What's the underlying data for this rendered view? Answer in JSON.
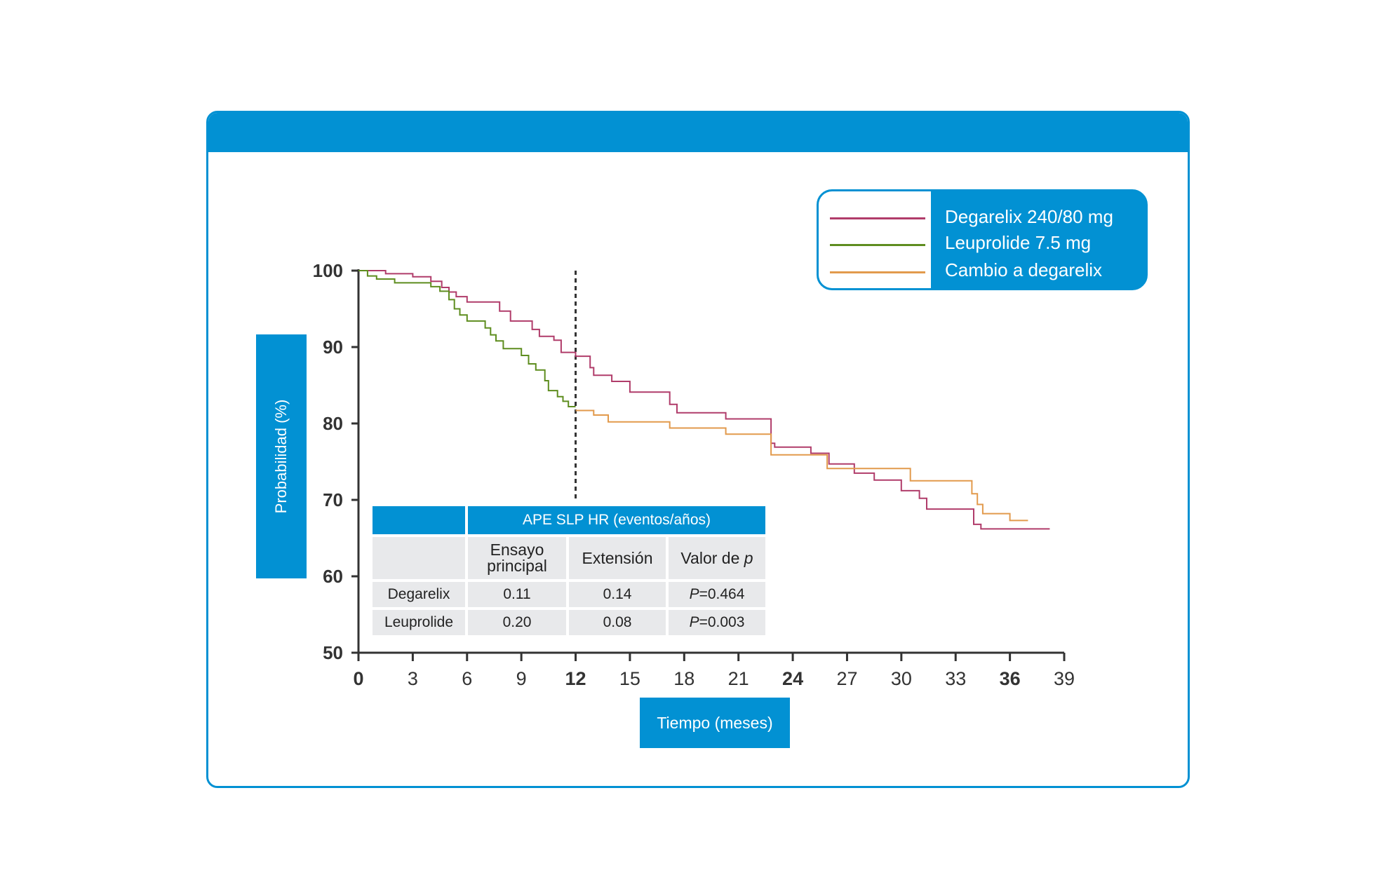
{
  "chart_data": {
    "type": "line",
    "xlabel": "Tiempo (meses)",
    "ylabel": "Probabilidad (%)",
    "xlim": [
      0,
      39
    ],
    "ylim": [
      50,
      100
    ],
    "x_ticks": [
      "0",
      "3",
      "6",
      "9",
      "12",
      "15",
      "18",
      "21",
      "24",
      "27",
      "30",
      "33",
      "36",
      "39"
    ],
    "x_ticks_bold": [
      "0",
      "12",
      "24",
      "36"
    ],
    "y_ticks": [
      "100",
      "90",
      "80",
      "70",
      "60",
      "50"
    ],
    "reference_line_x": 12,
    "legend_placement": "top-right",
    "series": [
      {
        "name": "Degarelix 240/80 mg",
        "color": "#b03c6a",
        "step": true,
        "points": [
          [
            0,
            100
          ],
          [
            1.5,
            100
          ],
          [
            1.5,
            99.6
          ],
          [
            3,
            99.6
          ],
          [
            3,
            99.2
          ],
          [
            4,
            99.2
          ],
          [
            4,
            98.6
          ],
          [
            4.6,
            98.6
          ],
          [
            4.6,
            97.8
          ],
          [
            5,
            97.8
          ],
          [
            5,
            97.2
          ],
          [
            5.4,
            97.2
          ],
          [
            5.4,
            96.6
          ],
          [
            6,
            96.6
          ],
          [
            6,
            95.9
          ],
          [
            7.8,
            95.9
          ],
          [
            7.8,
            94.7
          ],
          [
            8.4,
            94.7
          ],
          [
            8.4,
            93.4
          ],
          [
            9.6,
            93.4
          ],
          [
            9.6,
            92.3
          ],
          [
            10,
            92.3
          ],
          [
            10,
            91.4
          ],
          [
            10.8,
            91.4
          ],
          [
            10.8,
            90.9
          ],
          [
            11.2,
            90.9
          ],
          [
            11.2,
            89.3
          ],
          [
            12,
            89.3
          ],
          [
            12,
            88.8
          ],
          [
            12.8,
            88.8
          ],
          [
            12.8,
            87.3
          ],
          [
            13,
            87.3
          ],
          [
            13,
            86.3
          ],
          [
            14,
            86.3
          ],
          [
            14,
            85.5
          ],
          [
            15,
            85.5
          ],
          [
            15,
            84.1
          ],
          [
            17.2,
            84.1
          ],
          [
            17.2,
            82.5
          ],
          [
            17.6,
            82.5
          ],
          [
            17.6,
            81.4
          ],
          [
            20.3,
            81.4
          ],
          [
            20.3,
            80.6
          ],
          [
            22.8,
            80.6
          ],
          [
            22.8,
            77.4
          ],
          [
            23,
            77.4
          ],
          [
            23,
            76.9
          ],
          [
            25,
            76.9
          ],
          [
            25,
            76.1
          ],
          [
            26,
            76.1
          ],
          [
            26,
            74.7
          ],
          [
            27.4,
            74.7
          ],
          [
            27.4,
            73.5
          ],
          [
            28.5,
            73.5
          ],
          [
            28.5,
            72.6
          ],
          [
            30,
            72.6
          ],
          [
            30,
            71.2
          ],
          [
            31,
            71.2
          ],
          [
            31,
            70.2
          ],
          [
            31.4,
            70.2
          ],
          [
            31.4,
            68.8
          ],
          [
            34,
            68.8
          ],
          [
            34,
            66.8
          ],
          [
            34.4,
            66.8
          ],
          [
            34.4,
            66.2
          ],
          [
            38.2,
            66.2
          ]
        ]
      },
      {
        "name": "Leuprolide 7.5 mg",
        "color": "#5e8d1f",
        "step": true,
        "points": [
          [
            0,
            100
          ],
          [
            0.5,
            100
          ],
          [
            0.5,
            99.3
          ],
          [
            1,
            99.3
          ],
          [
            1,
            98.9
          ],
          [
            2,
            98.9
          ],
          [
            2,
            98.4
          ],
          [
            4,
            98.4
          ],
          [
            4,
            97.9
          ],
          [
            4.5,
            97.9
          ],
          [
            4.5,
            97.3
          ],
          [
            5,
            97.3
          ],
          [
            5,
            96.2
          ],
          [
            5.3,
            96.2
          ],
          [
            5.3,
            95
          ],
          [
            5.6,
            95
          ],
          [
            5.6,
            94.2
          ],
          [
            6,
            94.2
          ],
          [
            6,
            93.4
          ],
          [
            7,
            93.4
          ],
          [
            7,
            92.5
          ],
          [
            7.3,
            92.5
          ],
          [
            7.3,
            91.6
          ],
          [
            7.6,
            91.6
          ],
          [
            7.6,
            90.8
          ],
          [
            8,
            90.8
          ],
          [
            8,
            89.8
          ],
          [
            9,
            89.8
          ],
          [
            9,
            88.9
          ],
          [
            9.4,
            88.9
          ],
          [
            9.4,
            87.8
          ],
          [
            9.8,
            87.8
          ],
          [
            9.8,
            87
          ],
          [
            10.3,
            87
          ],
          [
            10.3,
            85.6
          ],
          [
            10.5,
            85.6
          ],
          [
            10.5,
            84.3
          ],
          [
            11,
            84.3
          ],
          [
            11,
            83.5
          ],
          [
            11.3,
            83.5
          ],
          [
            11.3,
            82.9
          ],
          [
            11.6,
            82.9
          ],
          [
            11.6,
            82.2
          ],
          [
            12,
            82.2
          ]
        ]
      },
      {
        "name": "Cambio a degarelix",
        "color": "#e29a4c",
        "step": true,
        "points": [
          [
            12,
            81.7
          ],
          [
            13,
            81.7
          ],
          [
            13,
            81.1
          ],
          [
            13.8,
            81.1
          ],
          [
            13.8,
            80.2
          ],
          [
            17.2,
            80.2
          ],
          [
            17.2,
            79.4
          ],
          [
            20.3,
            79.4
          ],
          [
            20.3,
            78.6
          ],
          [
            22.8,
            78.6
          ],
          [
            22.8,
            75.9
          ],
          [
            25.9,
            75.9
          ],
          [
            25.9,
            74.1
          ],
          [
            30.5,
            74.1
          ],
          [
            30.5,
            72.5
          ],
          [
            33.9,
            72.5
          ],
          [
            33.9,
            70.8
          ],
          [
            34.2,
            70.8
          ],
          [
            34.2,
            69.4
          ],
          [
            34.5,
            69.4
          ],
          [
            34.5,
            68.2
          ],
          [
            36,
            68.2
          ],
          [
            36,
            67.3
          ],
          [
            37,
            67.3
          ]
        ]
      }
    ]
  },
  "hr_table": {
    "title": "APE SLP HR (eventos/años)",
    "col_headers": {
      "main": "Ensayo principal",
      "extension": "Extensión",
      "p": "Valor de ",
      "p_italic": "p"
    },
    "rows": [
      {
        "label": "Degarelix",
        "main": "0.11",
        "extension": "0.14",
        "p_prefix": "P",
        "p_value": "=0.464"
      },
      {
        "label": "Leuprolide",
        "main": "0.20",
        "extension": "0.08",
        "p_prefix": "P",
        "p_value": "=0.003"
      }
    ]
  },
  "colors": {
    "accent": "#0291d3",
    "axis": "#333333",
    "table_bg": "#e8e9eb"
  }
}
